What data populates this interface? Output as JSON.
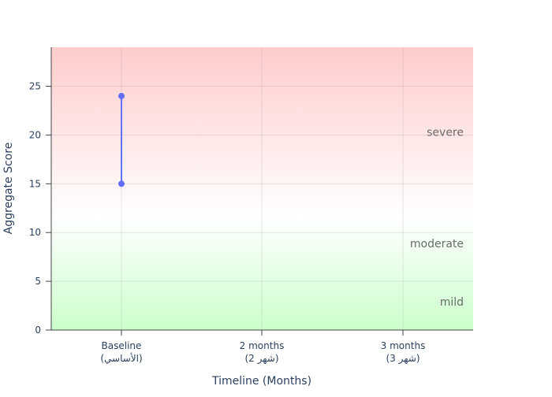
{
  "chart_data": {
    "type": "line",
    "xlabel": "Timeline (Months)",
    "ylabel": "Aggregate Score",
    "categories": [
      {
        "line1": "Baseline",
        "line2": "(الأساسي)"
      },
      {
        "line1": "2 months",
        "line2": "(شهر 2)"
      },
      {
        "line1": "3 months",
        "line2": "(شهر 3)"
      }
    ],
    "ylim": [
      0,
      29
    ],
    "yticks": [
      0,
      5,
      10,
      15,
      20,
      25
    ],
    "grid": true,
    "series": [
      {
        "x": [
          "Baseline",
          "Baseline"
        ],
        "values": [
          15,
          24
        ],
        "color": "#636efa"
      }
    ],
    "severity_bands": [
      {
        "label": "severe",
        "y": 20.3
      },
      {
        "label": "moderate",
        "y": 8.9
      },
      {
        "label": "mild",
        "y": 2.9
      }
    ],
    "band_colors": {
      "top": "#ffcccc",
      "middle": "#ffffff",
      "bottom": "#ccffcc"
    }
  }
}
